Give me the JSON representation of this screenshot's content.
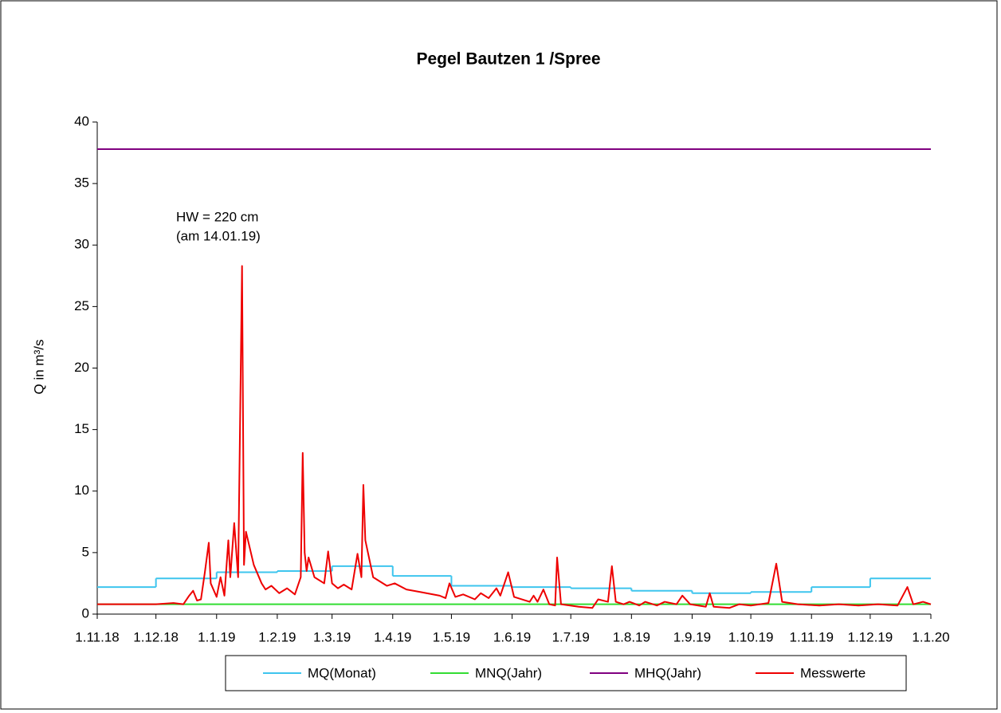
{
  "chart_data": {
    "type": "line",
    "title": "Pegel  Bautzen 1 /Spree",
    "y_label": "Q in m³/s",
    "annotations": [
      "HW = 220 cm",
      "(am 14.01.19)"
    ],
    "xlim": [
      "1.11.18",
      "1.1.20"
    ],
    "xticks": [
      "1.11.18",
      "1.12.18",
      "1.1.19",
      "1.2.19",
      "1.3.19",
      "1.4.19",
      "1.5.19",
      "1.6.19",
      "1.7.19",
      "1.8.19",
      "1.9.19",
      "1.10.19",
      "1.11.19",
      "1.12.19",
      "1.1.20"
    ],
    "ylim": [
      0,
      40
    ],
    "yticks": [
      0,
      5,
      10,
      15,
      20,
      25,
      30,
      35,
      40
    ],
    "grid": false,
    "legend": "bottom",
    "series": [
      {
        "name": "MQ(Monat)",
        "color": "#3ec5ee",
        "step": true,
        "x": [
          "1.11.18",
          "1.12.18",
          "1.1.19",
          "1.2.19",
          "1.3.19",
          "1.4.19",
          "1.5.19",
          "1.6.19",
          "1.7.19",
          "1.8.19",
          "1.9.19",
          "1.10.19",
          "1.11.19",
          "1.12.19"
        ],
        "values": [
          2.2,
          2.9,
          3.4,
          3.5,
          3.9,
          3.1,
          2.3,
          2.2,
          2.1,
          1.9,
          1.7,
          1.8,
          2.2,
          2.9
        ]
      },
      {
        "name": "MNQ(Jahr)",
        "color": "#33dd33",
        "x": [
          "1.11.18",
          "1.1.20"
        ],
        "values": [
          0.8,
          0.8
        ]
      },
      {
        "name": "MHQ(Jahr)",
        "color": "#800080",
        "x": [
          "1.11.18",
          "1.1.20"
        ],
        "values": [
          37.8,
          37.8
        ]
      },
      {
        "name": "Messwerte",
        "color": "#ee0000",
        "x": [
          "1.11.18",
          "15.11.18",
          "1.12.18",
          "10.12.18",
          "15.12.18",
          "18.12.18",
          "20.12.18",
          "22.12.18",
          "24.12.18",
          "26.12.18",
          "28.12.18",
          "29.12.18",
          "1.1.19",
          "3.1.19",
          "5.1.19",
          "7.1.19",
          "8.1.19",
          "10.1.19",
          "12.1.19",
          "14.1.19",
          "15.1.19",
          "16.1.19",
          "20.1.19",
          "24.1.19",
          "26.1.19",
          "29.1.19",
          "2.2.19",
          "6.2.19",
          "10.2.19",
          "13.2.19",
          "14.2.19",
          "15.2.19",
          "16.2.19",
          "17.2.19",
          "20.2.19",
          "25.2.19",
          "27.2.19",
          "1.3.19",
          "4.3.19",
          "7.3.19",
          "11.3.19",
          "14.3.19",
          "16.3.19",
          "17.3.19",
          "18.3.19",
          "22.3.19",
          "29.3.19",
          "2.4.19",
          "8.4.19",
          "15.4.19",
          "25.4.19",
          "28.4.19",
          "30.4.19",
          "3.5.19",
          "7.5.19",
          "13.5.19",
          "16.5.19",
          "20.5.19",
          "24.5.19",
          "26.5.19",
          "30.5.19",
          "2.6.19",
          "10.6.19",
          "12.6.19",
          "14.6.19",
          "17.6.19",
          "20.6.19",
          "23.6.19",
          "24.6.19",
          "26.6.19",
          "5.7.19",
          "12.7.19",
          "15.7.19",
          "20.7.19",
          "22.7.19",
          "24.7.19",
          "28.7.19",
          "31.7.19",
          "5.8.19",
          "8.8.19",
          "14.8.19",
          "18.8.19",
          "24.8.19",
          "27.8.19",
          "31.8.19",
          "8.9.19",
          "10.9.19",
          "12.9.19",
          "20.9.19",
          "25.9.19",
          "1.10.19",
          "10.10.19",
          "14.10.19",
          "17.10.19",
          "25.10.19",
          "5.11.19",
          "15.11.19",
          "25.11.19",
          "5.12.19",
          "15.12.19",
          "20.12.19",
          "23.12.19",
          "28.12.19",
          "1.1.20"
        ],
        "values": [
          0.8,
          0.8,
          0.8,
          0.9,
          0.8,
          1.5,
          1.9,
          1.1,
          1.2,
          3.4,
          5.8,
          2.5,
          1.4,
          3.0,
          1.5,
          6.0,
          3.0,
          7.4,
          3.0,
          28.3,
          4.0,
          6.7,
          4.0,
          2.5,
          2.0,
          2.3,
          1.7,
          2.1,
          1.6,
          3.0,
          13.1,
          5.0,
          3.5,
          4.6,
          3.0,
          2.5,
          5.1,
          2.5,
          2.1,
          2.4,
          2.0,
          4.9,
          3.0,
          10.5,
          6.0,
          3.0,
          2.3,
          2.5,
          2.0,
          1.8,
          1.5,
          1.3,
          2.5,
          1.4,
          1.6,
          1.2,
          1.7,
          1.3,
          2.1,
          1.5,
          3.4,
          1.4,
          1.0,
          1.5,
          1.0,
          2.0,
          0.8,
          0.7,
          4.6,
          0.8,
          0.6,
          0.5,
          1.2,
          1.0,
          3.9,
          1.0,
          0.8,
          1.0,
          0.7,
          1.0,
          0.7,
          1.0,
          0.8,
          1.5,
          0.8,
          0.6,
          1.7,
          0.6,
          0.5,
          0.8,
          0.7,
          0.9,
          4.1,
          1.0,
          0.8,
          0.7,
          0.8,
          0.7,
          0.8,
          0.7,
          2.2,
          0.8,
          1.0,
          0.8
        ]
      }
    ]
  }
}
